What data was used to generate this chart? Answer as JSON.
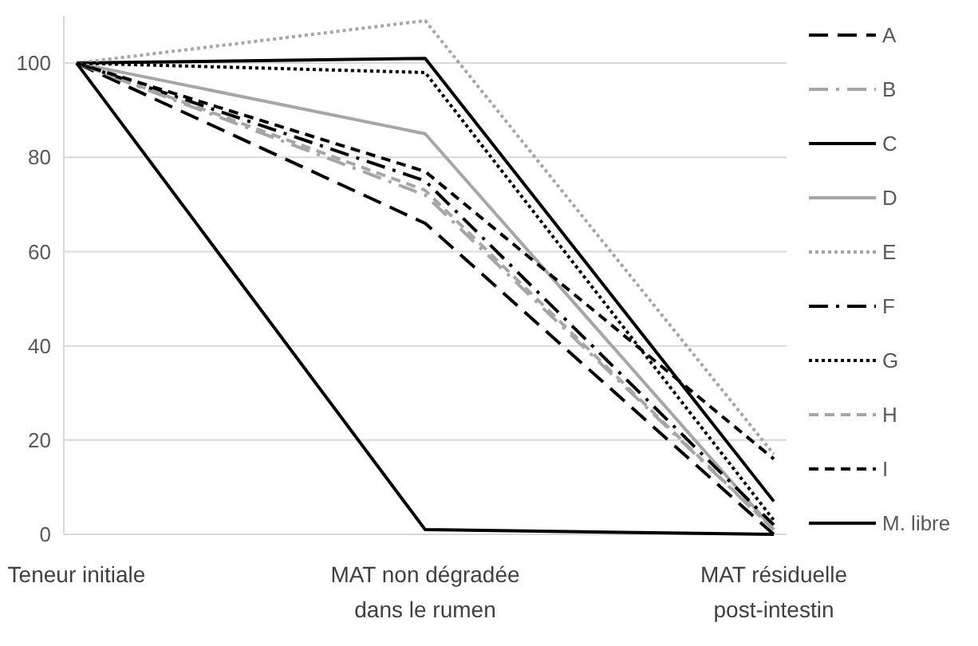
{
  "chart_data": {
    "type": "line",
    "categories": [
      "Teneur initiale",
      "MAT non dégradée dans le rumen",
      "MAT résiduelle post-intestin"
    ],
    "ylim": [
      0,
      110
    ],
    "yticks": [
      0,
      20,
      40,
      60,
      80,
      100
    ],
    "grid": "y",
    "legend": "right",
    "series": [
      {
        "name": "A",
        "color": "#000000",
        "line_style": "longdash",
        "values": [
          100,
          66,
          0
        ]
      },
      {
        "name": "B",
        "color": "#a6a6a6",
        "line_style": "dashdot",
        "values": [
          100,
          72,
          1
        ]
      },
      {
        "name": "C",
        "color": "#000000",
        "line_style": "solid",
        "values": [
          100,
          101,
          7
        ]
      },
      {
        "name": "D",
        "color": "#a6a6a6",
        "line_style": "solid",
        "values": [
          100,
          85,
          1
        ]
      },
      {
        "name": "E",
        "color": "#a6a6a6",
        "line_style": "dotted",
        "values": [
          100,
          109,
          17
        ]
      },
      {
        "name": "F",
        "color": "#000000",
        "line_style": "dashdot",
        "values": [
          100,
          75,
          2
        ]
      },
      {
        "name": "G",
        "color": "#000000",
        "line_style": "dotted",
        "values": [
          100,
          98,
          3
        ]
      },
      {
        "name": "H",
        "color": "#a6a6a6",
        "line_style": "dashed",
        "values": [
          100,
          73,
          1
        ]
      },
      {
        "name": "I",
        "color": "#000000",
        "line_style": "dashed",
        "values": [
          100,
          77,
          16
        ]
      },
      {
        "name": "M. libre",
        "color": "#000000",
        "line_style": "solid",
        "values": [
          100,
          1,
          0
        ]
      }
    ]
  }
}
